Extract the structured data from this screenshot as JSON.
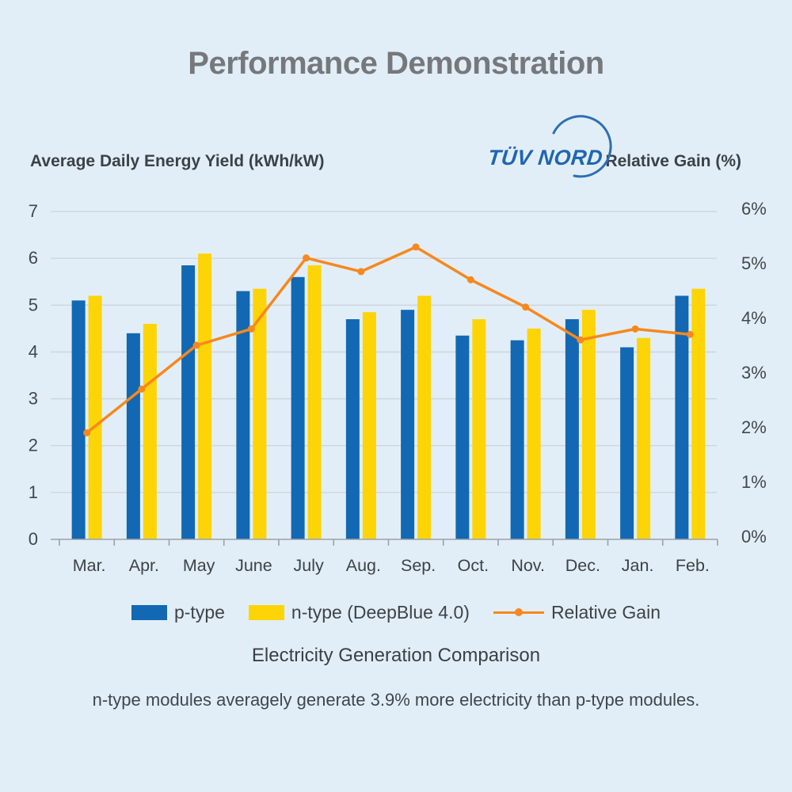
{
  "header": {
    "title": "Performance Demonstration"
  },
  "axes": {
    "left_title": "Average Daily Energy Yield  (kWh/kW)",
    "right_title": "Relative Gain  (%)"
  },
  "logo": {
    "text": "TÜV NORD"
  },
  "legend": [
    {
      "label": "p-type",
      "color": "#1268b3",
      "type": "bar"
    },
    {
      "label": "n-type (DeepBlue 4.0)",
      "color": "#fdd405",
      "type": "bar"
    },
    {
      "label": "Relative Gain",
      "color": "#f6881f",
      "type": "line"
    }
  ],
  "subtitle": "Electricity Generation Comparison",
  "footnote": "n-type modules averagely generate 3.9% more electricity than p-type modules.",
  "chart_data": {
    "type": "bar",
    "title": "Electricity Generation Comparison",
    "categories": [
      "Mar.",
      "Apr.",
      "May",
      "June",
      "July",
      "Aug.",
      "Sep.",
      "Oct.",
      "Nov.",
      "Dec.",
      "Jan.",
      "Feb."
    ],
    "series": [
      {
        "name": "p-type",
        "type": "bar",
        "axis": "left",
        "color": "#1268b3",
        "values": [
          5.1,
          4.4,
          5.85,
          5.3,
          5.6,
          4.7,
          4.9,
          4.35,
          4.25,
          4.7,
          4.1,
          5.2
        ]
      },
      {
        "name": "n-type (DeepBlue 4.0)",
        "type": "bar",
        "axis": "left",
        "color": "#fdd405",
        "values": [
          5.2,
          4.6,
          6.1,
          5.35,
          5.85,
          4.85,
          5.2,
          4.7,
          4.5,
          4.9,
          4.3,
          5.35
        ]
      },
      {
        "name": "Relative Gain",
        "type": "line",
        "axis": "right",
        "color": "#f6881f",
        "values": [
          1.95,
          2.75,
          3.55,
          3.85,
          5.15,
          4.9,
          5.35,
          4.75,
          4.25,
          3.65,
          3.85,
          3.75
        ]
      }
    ],
    "left_axis": {
      "title": "Average Daily Energy Yield (kWh/kW)",
      "min": 0,
      "max": 7,
      "tick_labels": [
        "0",
        "1",
        "2",
        "3",
        "4",
        "5",
        "6",
        "7"
      ]
    },
    "right_axis": {
      "title": "Relative Gain (%)",
      "min": 0,
      "max": 6,
      "tick_labels": [
        "0%",
        "1%",
        "2%",
        "3%",
        "4%",
        "5%",
        "6%"
      ]
    },
    "grid": true,
    "legend_position": "bottom",
    "colors": {
      "background": "#e2eef7",
      "gridline": "#ccd3d9",
      "axis_line": "#9aa1a8",
      "tick_text": "#42474c",
      "bar_blue": "#1268b3",
      "bar_yellow": "#fdd405",
      "line_orange": "#f6881f",
      "logo_blue": "#1f66b0",
      "title_gray": "#76787b"
    }
  }
}
